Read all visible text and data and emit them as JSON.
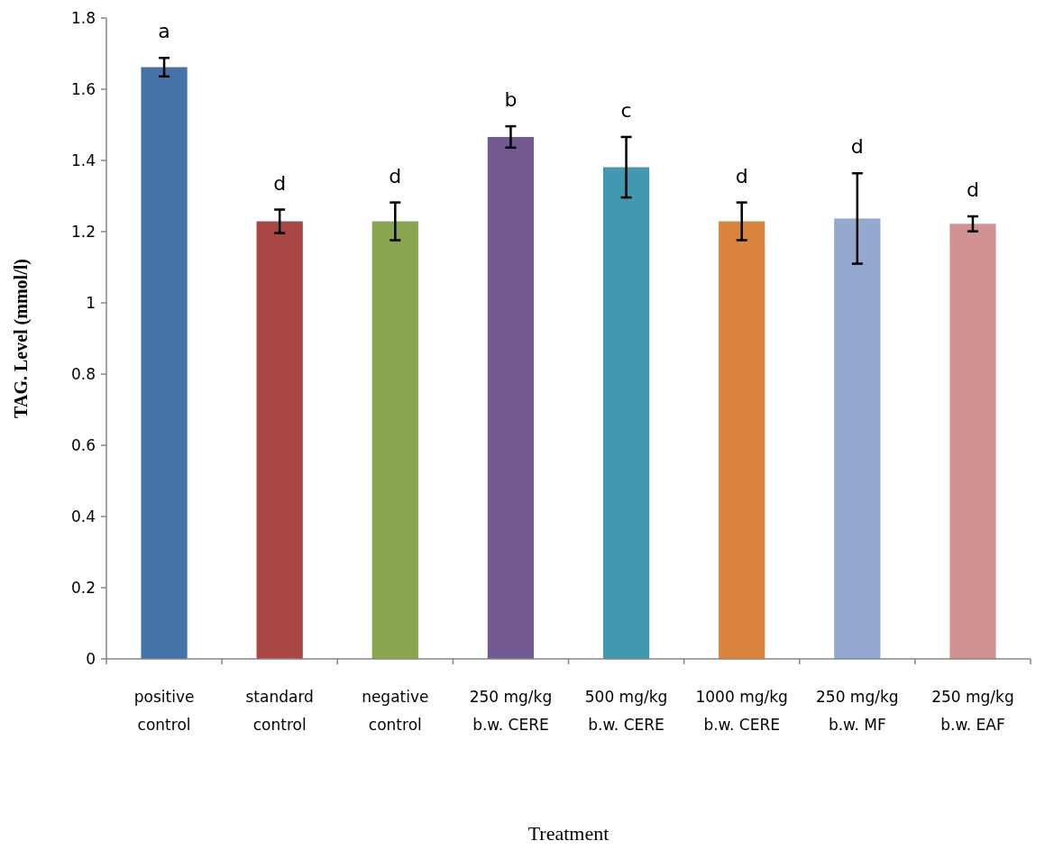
{
  "chart_data": {
    "type": "bar",
    "xlabel": "Treatment",
    "ylabel": "TAG. Level (mmol/l)",
    "categories": [
      "positive control",
      "standard control",
      "negative control",
      "250 mg/kg b.w. CERE",
      "500 mg/kg b.w. CERE",
      "1000 mg/kg b.w. CERE",
      "250 mg/kg b.w. MF",
      "250 mg/kg b.w. EAF"
    ],
    "values": [
      1.662,
      1.229,
      1.229,
      1.466,
      1.381,
      1.229,
      1.237,
      1.222
    ],
    "errors": [
      0.026,
      0.033,
      0.053,
      0.03,
      0.085,
      0.053,
      0.127,
      0.021
    ],
    "colors": [
      "#4673a7",
      "#aa4744",
      "#89a54e",
      "#71598f",
      "#4198af",
      "#db843d",
      "#93a9cf",
      "#d19392"
    ],
    "ylim": [
      0,
      1.8
    ],
    "yticks": [
      0,
      0.2,
      0.4,
      0.6,
      0.8,
      1,
      1.2,
      1.4,
      1.6,
      1.8
    ],
    "grid": false,
    "annotations": [
      "a",
      "d",
      "d",
      "b",
      "c",
      "d",
      "d",
      "d"
    ]
  }
}
